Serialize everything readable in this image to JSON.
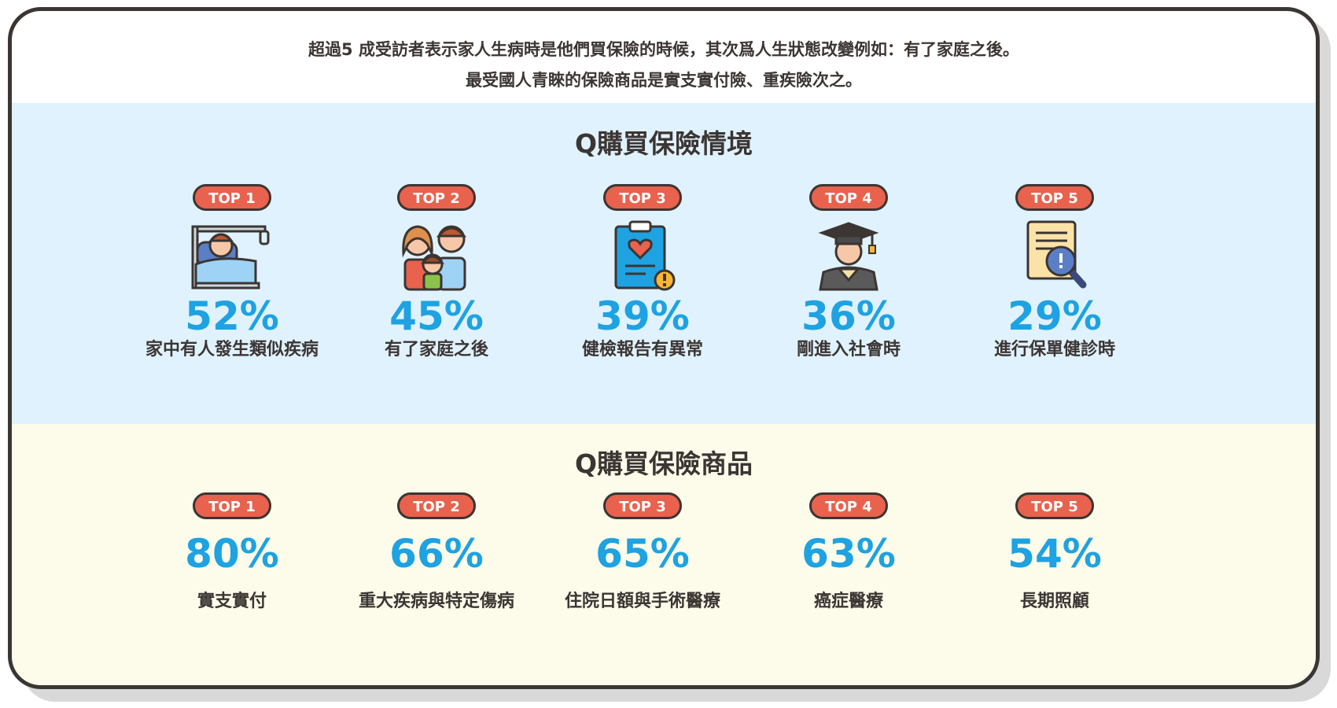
{
  "intro": {
    "line1": "超過5 成受訪者表示家人生病時是他們買保險的時候，其次爲人生狀態改變例如：有了家庭之後。",
    "line2": "最受國人青睞的保險商品是實支實付險、重疾險次之。"
  },
  "chart_data": [
    {
      "type": "table",
      "title": "Q購買保險情境",
      "categories": [
        "家中有人發生類似疾病",
        "有了家庭之後",
        "健檢報告有異常",
        "剛進入社會時",
        "進行保單健診時"
      ],
      "ranks": [
        "TOP 1",
        "TOP 2",
        "TOP 3",
        "TOP 4",
        "TOP 5"
      ],
      "values": [
        52,
        45,
        39,
        36,
        29
      ],
      "value_labels": [
        "52%",
        "45%",
        "39%",
        "36%",
        "29%"
      ],
      "icons": [
        "hospital-bed-icon",
        "family-icon",
        "medical-report-icon",
        "graduate-icon",
        "document-search-icon"
      ]
    },
    {
      "type": "table",
      "title": "Q購買保險商品",
      "categories": [
        "實支實付",
        "重大疾病與特定傷病",
        "住院日額與手術醫療",
        "癌症醫療",
        "長期照顧"
      ],
      "ranks": [
        "TOP 1",
        "TOP 2",
        "TOP 3",
        "TOP 4",
        "TOP 5"
      ],
      "values": [
        80,
        66,
        65,
        63,
        54
      ],
      "value_labels": [
        "80%",
        "66%",
        "65%",
        "63%",
        "54%"
      ]
    }
  ],
  "colors": {
    "badge": "#e8624d",
    "value": "#1ea2e2",
    "band_top": "#e0f2fd",
    "band_bottom": "#fdfcea",
    "outline": "#3b3533"
  }
}
